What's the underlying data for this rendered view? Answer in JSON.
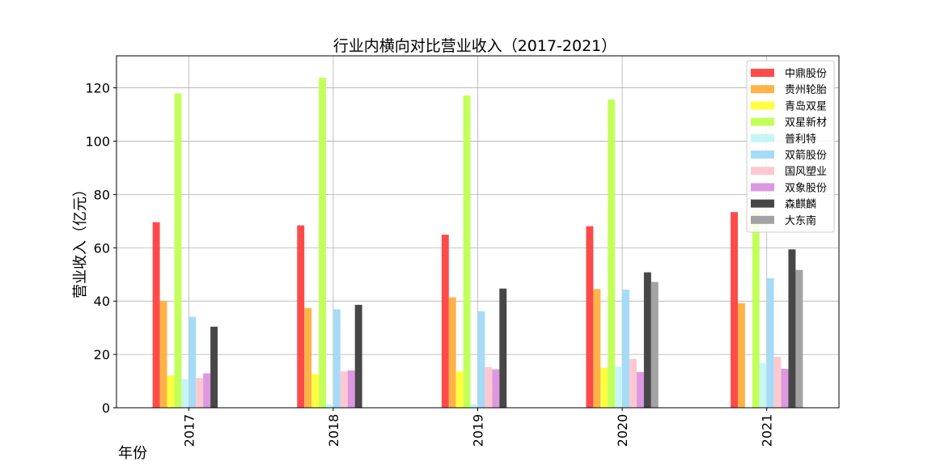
{
  "chart_data": {
    "type": "bar",
    "title": "行业内横向对比营业收入（2017-2021）",
    "xlabel": "年份",
    "ylabel": "营业收入（亿元）",
    "categories": [
      "2017",
      "2018",
      "2019",
      "2020",
      "2021"
    ],
    "ylim": [
      0,
      132
    ],
    "yticks": [
      0,
      20,
      40,
      60,
      80,
      100,
      120
    ],
    "grid": true,
    "legend_position": "top-right",
    "series": [
      {
        "name": "中鼎股份",
        "color": "#ff4a4a",
        "values": [
          69.6,
          68.4,
          64.9,
          68.1,
          73.4
        ]
      },
      {
        "name": "贵州轮胎",
        "color": "#ffb347",
        "values": [
          40.0,
          37.4,
          41.4,
          44.5,
          39.2
        ]
      },
      {
        "name": "青岛双星",
        "color": "#ffff40",
        "values": [
          12.1,
          12.6,
          13.6,
          15.0,
          null
        ]
      },
      {
        "name": "双星新材",
        "color": "#c3ff5b",
        "values": [
          117.9,
          123.8,
          117.1,
          115.6,
          73.4
        ]
      },
      {
        "name": "普利特",
        "color": "#c7f5f5",
        "values": [
          10.7,
          1.3,
          1.4,
          15.4,
          16.8
        ]
      },
      {
        "name": "双箭股份",
        "color": "#a6dbf7",
        "values": [
          34.1,
          36.9,
          36.2,
          44.3,
          48.6
        ]
      },
      {
        "name": "国风塑业",
        "color": "#ffc8d0",
        "values": [
          11.2,
          13.7,
          15.3,
          18.3,
          19.1
        ]
      },
      {
        "name": "双象股份",
        "color": "#dc98e0",
        "values": [
          12.9,
          14.0,
          14.4,
          13.4,
          14.6
        ]
      },
      {
        "name": "森麒麟",
        "color": "#474747",
        "values": [
          30.4,
          38.6,
          44.7,
          50.8,
          59.4
        ]
      },
      {
        "name": "大东南",
        "color": "#a3a3a3",
        "values": [
          null,
          null,
          null,
          47.2,
          51.7
        ]
      }
    ]
  }
}
